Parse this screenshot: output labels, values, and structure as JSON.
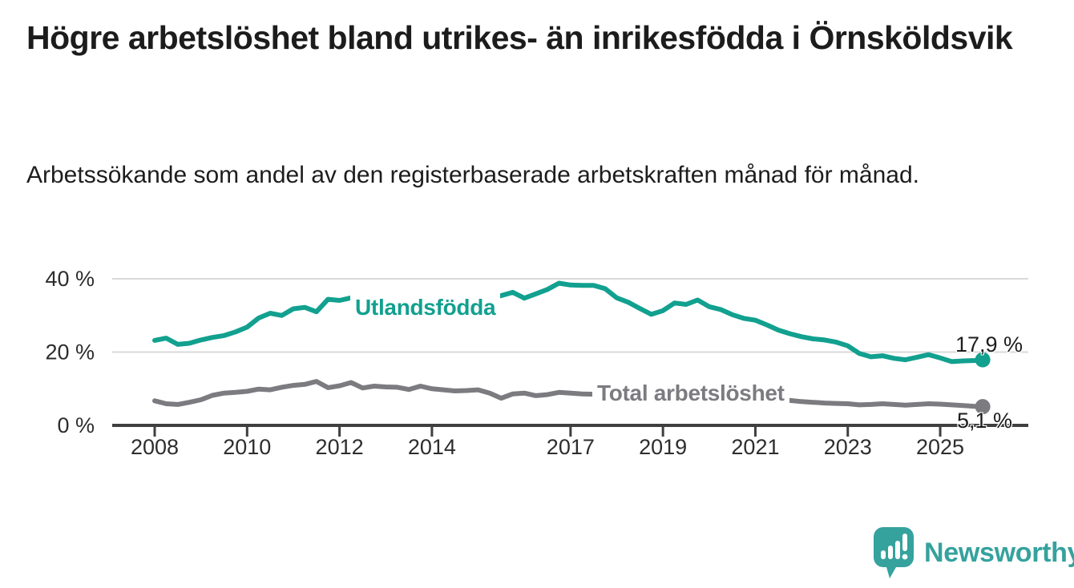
{
  "title": "Högre arbetslöshet bland utrikes- än inrikesfödda i Örnsköldsvik",
  "subtitle": "Arbetssökande som andel av den registerbaserade arbetskraften månad för månad.",
  "logo": {
    "text": "Newsworthy",
    "color": "#35a29d",
    "icon": "newsworthy-speech-bubble-bar-chart-icon"
  },
  "chart_data": {
    "type": "line",
    "grid": "horizontal",
    "legend_position": "inline-labels",
    "x_axis": {
      "ticks": [
        2008,
        2010,
        2012,
        2014,
        2017,
        2019,
        2021,
        2023,
        2025
      ],
      "tick_labels": [
        "2008",
        "2010",
        "2012",
        "2014",
        "2017",
        "2019",
        "2021",
        "2023",
        "2025"
      ],
      "range": [
        2007.9,
        2026.1
      ]
    },
    "y_axis": {
      "ticks": [
        0,
        20,
        40
      ],
      "tick_labels": [
        "0 %",
        "20 %",
        "40 %"
      ],
      "range": [
        0,
        42
      ],
      "unit": "%"
    },
    "x": [
      2008,
      2008.25,
      2008.5,
      2008.75,
      2009,
      2009.25,
      2009.5,
      2009.75,
      2010,
      2010.25,
      2010.5,
      2010.75,
      2011,
      2011.25,
      2011.5,
      2011.75,
      2012,
      2012.25,
      2012.5,
      2012.75,
      2013,
      2013.25,
      2013.5,
      2013.75,
      2014,
      2014.25,
      2014.5,
      2014.75,
      2015,
      2015.25,
      2015.5,
      2015.75,
      2016,
      2016.25,
      2016.5,
      2016.75,
      2017,
      2017.25,
      2017.5,
      2017.75,
      2018,
      2018.25,
      2018.5,
      2018.75,
      2019,
      2019.25,
      2019.5,
      2019.75,
      2020,
      2020.25,
      2020.5,
      2020.75,
      2021,
      2021.25,
      2021.5,
      2021.75,
      2022,
      2022.25,
      2022.5,
      2022.75,
      2023,
      2023.25,
      2023.5,
      2023.75,
      2024,
      2024.25,
      2024.5,
      2024.75,
      2025,
      2025.25,
      2025.5,
      2025.75,
      2025.92
    ],
    "series": [
      {
        "name": "Utlandsfödda",
        "color": "#12a08f",
        "end_label": "17,9 %",
        "end_value": 17.9,
        "values": [
          23.2,
          23.8,
          22.1,
          22.4,
          23.3,
          24.0,
          24.5,
          25.5,
          26.8,
          29.3,
          30.6,
          30.0,
          31.8,
          32.2,
          31.0,
          34.4,
          34.1,
          34.8,
          33.8,
          33.2,
          33.4,
          33.6,
          33.1,
          33.5,
          33.8,
          34.0,
          34.3,
          34.5,
          34.7,
          34.9,
          35.4,
          36.3,
          34.7,
          35.9,
          37.1,
          38.8,
          38.3,
          38.2,
          38.2,
          37.3,
          34.8,
          33.6,
          31.9,
          30.3,
          31.3,
          33.4,
          33.0,
          34.2,
          32.4,
          31.6,
          30.2,
          29.2,
          28.7,
          27.4,
          26.0,
          25.0,
          24.2,
          23.6,
          23.3,
          22.7,
          21.7,
          19.6,
          18.7,
          19.0,
          18.3,
          17.9,
          18.6,
          19.3,
          18.4,
          17.4,
          17.6,
          17.7,
          17.9
        ]
      },
      {
        "name": "Total arbetslöshet",
        "color": "#7b7b80",
        "end_label": "5,1 %",
        "end_value": 5.1,
        "values": [
          6.7,
          5.9,
          5.7,
          6.3,
          7.0,
          8.2,
          8.8,
          9.0,
          9.3,
          9.9,
          9.7,
          10.4,
          10.9,
          11.2,
          12.0,
          10.3,
          10.8,
          11.7,
          10.2,
          10.7,
          10.5,
          10.4,
          9.8,
          10.7,
          10.0,
          9.7,
          9.4,
          9.5,
          9.7,
          8.8,
          7.4,
          8.6,
          8.8,
          8.1,
          8.4,
          9.0,
          8.8,
          8.6,
          8.5,
          8.2,
          7.8,
          7.4,
          7.2,
          7.0,
          7.1,
          7.3,
          7.2,
          7.4,
          7.6,
          8.6,
          8.8,
          8.4,
          8.0,
          7.6,
          7.2,
          6.8,
          6.5,
          6.3,
          6.1,
          6.0,
          5.9,
          5.6,
          5.7,
          5.9,
          5.7,
          5.5,
          5.7,
          5.9,
          5.8,
          5.6,
          5.4,
          5.2,
          5.1
        ]
      }
    ]
  }
}
